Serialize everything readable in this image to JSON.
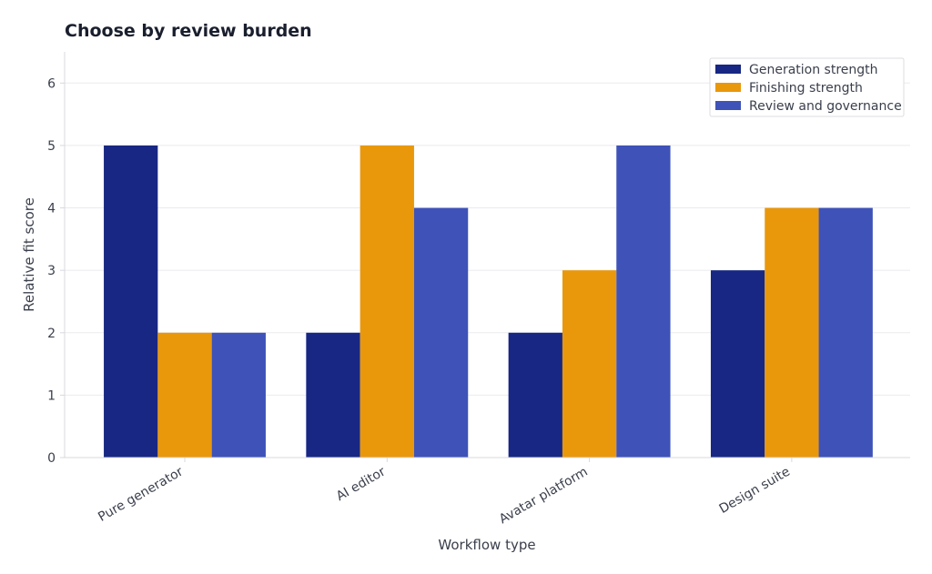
{
  "chart_data": {
    "type": "bar",
    "title": "Choose by review burden",
    "xlabel": "Workflow type",
    "ylabel": "Relative fit score",
    "categories": [
      "Pure generator",
      "AI editor",
      "Avatar platform",
      "Design suite"
    ],
    "series": [
      {
        "name": "Generation strength",
        "color": "#172783",
        "values": [
          5,
          2,
          2,
          3
        ]
      },
      {
        "name": "Finishing strength",
        "color": "#e9980c",
        "values": [
          2,
          5,
          3,
          4
        ]
      },
      {
        "name": "Review and governance",
        "color": "#3e52b8",
        "values": [
          2,
          4,
          5,
          4
        ]
      }
    ],
    "ylim": [
      0,
      6.5
    ],
    "yticks": [
      0,
      1,
      2,
      3,
      4,
      5,
      6
    ],
    "grid": true,
    "legend_position": "top-right"
  }
}
